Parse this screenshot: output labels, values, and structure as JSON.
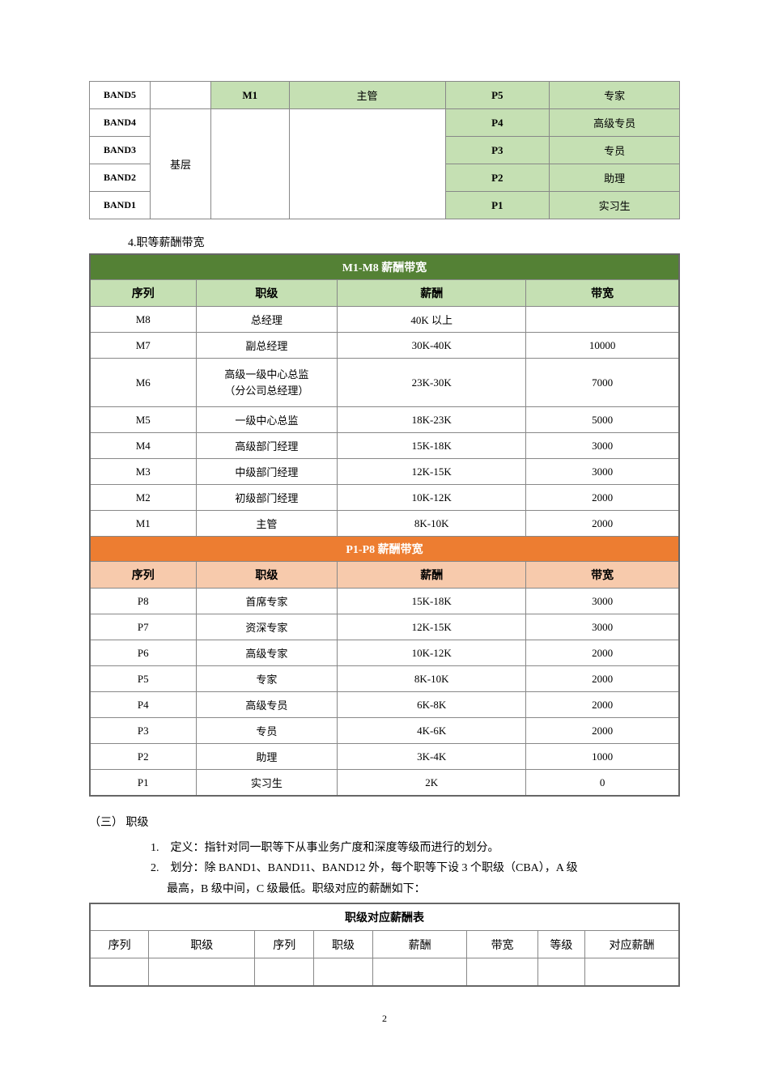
{
  "band_table": {
    "rows": [
      {
        "band": "BAND5",
        "cat": "",
        "m_code": "M1",
        "m_name": "主管",
        "p_code": "P5",
        "p_name": "专家"
      },
      {
        "band": "BAND4",
        "cat": "",
        "m_code": "",
        "m_name": "",
        "p_code": "P4",
        "p_name": "高级专员"
      },
      {
        "band": "BAND3",
        "cat": "基层",
        "m_code": "",
        "m_name": "",
        "p_code": "P3",
        "p_name": "专员"
      },
      {
        "band": "BAND2",
        "cat": "",
        "m_code": "",
        "m_name": "",
        "p_code": "P2",
        "p_name": "助理"
      },
      {
        "band": "BAND1",
        "cat": "",
        "m_code": "",
        "m_name": "",
        "p_code": "P1",
        "p_name": "实习生"
      }
    ],
    "cat_merge_label": "基层"
  },
  "section4_label": "4.职等薪酬带宽",
  "salary_m": {
    "title": "M1-M8 薪酬带宽",
    "headers": [
      "序列",
      "职级",
      "薪酬",
      "带宽"
    ],
    "rows": [
      [
        "M8",
        "总经理",
        "40K 以上",
        ""
      ],
      [
        "M7",
        "副总经理",
        "30K-40K",
        "10000"
      ],
      [
        "M6",
        "高级一级中心总监（分公司总经理）",
        "23K-30K",
        "7000"
      ],
      [
        "M5",
        "一级中心总监",
        "18K-23K",
        "5000"
      ],
      [
        "M4",
        "高级部门经理",
        "15K-18K",
        "3000"
      ],
      [
        "M3",
        "中级部门经理",
        "12K-15K",
        "3000"
      ],
      [
        "M2",
        "初级部门经理",
        "10K-12K",
        "2000"
      ],
      [
        "M1",
        "主管",
        "8K-10K",
        "2000"
      ]
    ]
  },
  "salary_p": {
    "title": "P1-P8 薪酬带宽",
    "headers": [
      "序列",
      "职级",
      "薪酬",
      "带宽"
    ],
    "rows": [
      [
        "P8",
        "首席专家",
        "15K-18K",
        "3000"
      ],
      [
        "P7",
        "资深专家",
        "12K-15K",
        "3000"
      ],
      [
        "P6",
        "高级专家",
        "10K-12K",
        "2000"
      ],
      [
        "P5",
        "专家",
        "8K-10K",
        "2000"
      ],
      [
        "P4",
        "高级专员",
        "6K-8K",
        "2000"
      ],
      [
        "P3",
        "专员",
        "4K-6K",
        "2000"
      ],
      [
        "P2",
        "助理",
        "3K-4K",
        "1000"
      ],
      [
        "P1",
        "实习生",
        "2K",
        "0"
      ]
    ]
  },
  "section3": {
    "heading": "（三） 职级",
    "item1": "1.　定义：指针对同一职等下从事业务广度和深度等级而进行的划分。",
    "item2a": "2.　划分：除 BAND1、BAND11、BAND12 外，每个职等下设 3 个职级（CBA），A 级",
    "item2b": "最高，B 级中间，C 级最低。职级对应的薪酬如下："
  },
  "rank_table": {
    "title": "职级对应薪酬表",
    "headers": [
      "序列",
      "职级",
      "序列",
      "职级",
      "薪酬",
      "带宽",
      "等级",
      "对应薪酬"
    ],
    "col_widths": [
      "10%",
      "18%",
      "10%",
      "10%",
      "16%",
      "12%",
      "8%",
      "16%"
    ]
  },
  "page_number": "2"
}
